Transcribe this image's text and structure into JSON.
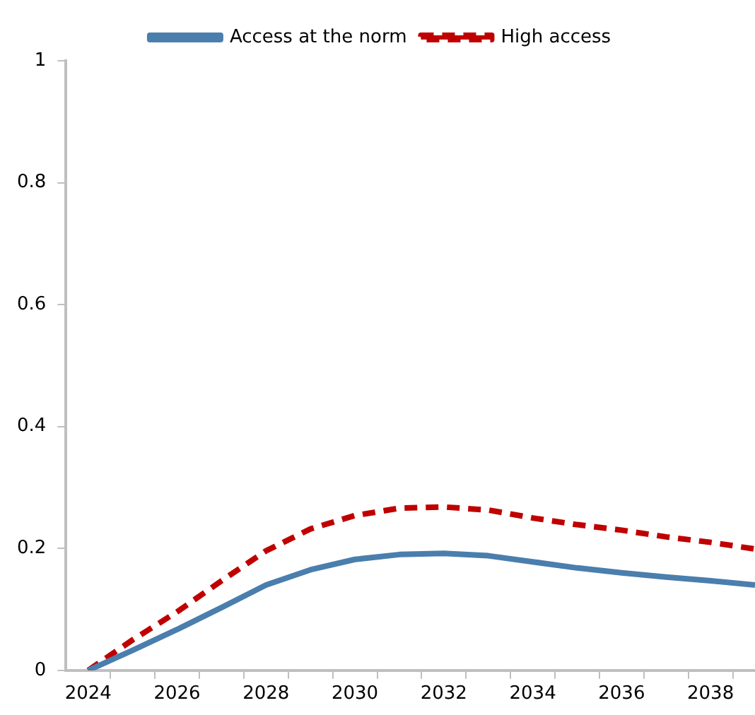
{
  "chart_data": {
    "type": "line",
    "x": [
      2024,
      2025,
      2026,
      2027,
      2028,
      2029,
      2030,
      2031,
      2032,
      2033,
      2034,
      2035,
      2036,
      2037,
      2038,
      2039
    ],
    "series": [
      {
        "name": "Access at the norm",
        "color": "#4a7ead",
        "line_style": "solid",
        "values": [
          0,
          0.033,
          0.067,
          0.103,
          0.14,
          0.165,
          0.182,
          0.19,
          0.192,
          0.188,
          0.178,
          0.168,
          0.16,
          0.153,
          0.147,
          0.14
        ]
      },
      {
        "name": "High access",
        "color": "#c00000",
        "line_style": "dashed",
        "values": [
          0,
          0.05,
          0.096,
          0.147,
          0.196,
          0.232,
          0.254,
          0.266,
          0.268,
          0.263,
          0.25,
          0.239,
          0.23,
          0.219,
          0.21,
          0.199
        ]
      }
    ],
    "xlim": [
      2023.5,
      2039
    ],
    "xticks": [
      2024,
      {
        "value": 2024.5,
        "label": null
      },
      2026,
      {
        "value": 2025.5,
        "label": null
      },
      {
        "value": 2026.5,
        "label": null
      },
      {
        "value": 2027.5,
        "label": null
      },
      2028,
      {
        "value": 2028.5,
        "label": null
      },
      {
        "value": 2029.5,
        "label": null
      },
      2030,
      {
        "value": 2030.5,
        "label": null
      },
      {
        "value": 2031.5,
        "label": null
      },
      2032,
      {
        "value": 2032.5,
        "label": null
      },
      {
        "value": 2033.5,
        "label": null
      },
      2034,
      {
        "value": 2034.5,
        "label": null
      },
      {
        "value": 2035.5,
        "label": null
      },
      2036,
      {
        "value": 2036.5,
        "label": null
      },
      {
        "value": 2037.5,
        "label": null
      },
      2038,
      {
        "value": 2038.5,
        "label": null
      }
    ],
    "ylim": [
      0,
      1
    ],
    "yticks": [
      0,
      0.2,
      0.4,
      0.6,
      0.8,
      1
    ],
    "grid": false,
    "legend": "top",
    "marker": "none"
  }
}
